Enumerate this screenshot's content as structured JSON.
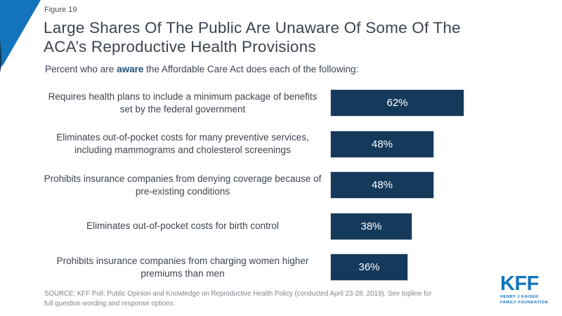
{
  "colors": {
    "brand_blue": "#1374BC",
    "bar_navy": "#14395B",
    "title_text": "#3B4450",
    "aware_navy": "#1F4E79",
    "source_gray": "#7E868F",
    "bar_border": "#D8D8D8"
  },
  "header": {
    "figure_label": "Figure 19",
    "title_line1": "Large Shares Of The Public Are Unaware Of Some Of The",
    "title_line2": "ACA’s Reproductive Health Provisions",
    "subtitle_prefix": "Percent who are ",
    "subtitle_bold": "aware",
    "subtitle_suffix": " the Affordable Care Act does each of the following:"
  },
  "chart_data": {
    "type": "bar",
    "orientation": "horizontal",
    "title": "Large Shares Of The Public Are Unaware Of Some Of The ACA’s Reproductive Health Provisions",
    "subtitle": "Percent who are aware the Affordable Care Act does each of the following:",
    "categories": [
      "Requires health plans to include a minimum package of benefits set by the federal government",
      "Eliminates out-of-pocket costs for many preventive services, including mammograms and cholesterol screenings",
      "Prohibits insurance companies from denying coverage because of pre-existing conditions",
      "Eliminates out-of-pocket costs for birth control",
      "Prohibits insurance companies from charging women higher premiums than men"
    ],
    "values": [
      62,
      48,
      48,
      38,
      36
    ],
    "value_labels": [
      "62%",
      "48%",
      "48%",
      "38%",
      "36%"
    ],
    "unit": "%",
    "xlim": [
      0,
      100
    ],
    "axis_visible": false,
    "grid": false,
    "legend": "none",
    "bar_color": "#14395B",
    "value_label_color": "#FFFFFF"
  },
  "footer": {
    "source": "SOURCE: KFF Poll: Public Opinion and Knowledge on Reproductive Health Policy (conducted April 23-28, 2019). See topline for full question wording and response options.",
    "logo": {
      "acronym": "KFF",
      "line1": "HENRY J KAISER",
      "line2": "FAMILY FOUNDATION"
    }
  }
}
